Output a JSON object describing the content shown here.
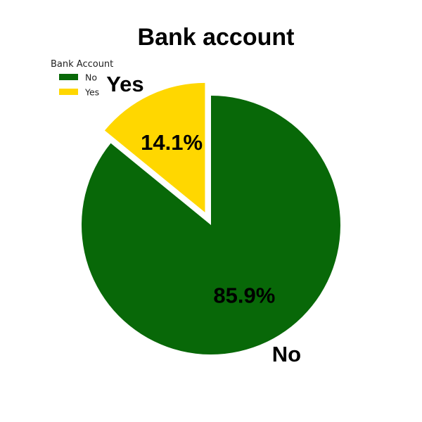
{
  "chart_data": {
    "type": "pie",
    "title": "Bank account",
    "legend": {
      "title": "Bank Account",
      "placement": "top-left"
    },
    "slices": [
      {
        "label": "No",
        "value": 85.9,
        "pct_label": "85.9%",
        "color": "#086808",
        "exploded": false
      },
      {
        "label": "Yes",
        "value": 14.1,
        "pct_label": "14.1%",
        "color": "#FFD700",
        "exploded": true
      }
    ],
    "start_angle_deg": 90,
    "direction": "clockwise"
  }
}
